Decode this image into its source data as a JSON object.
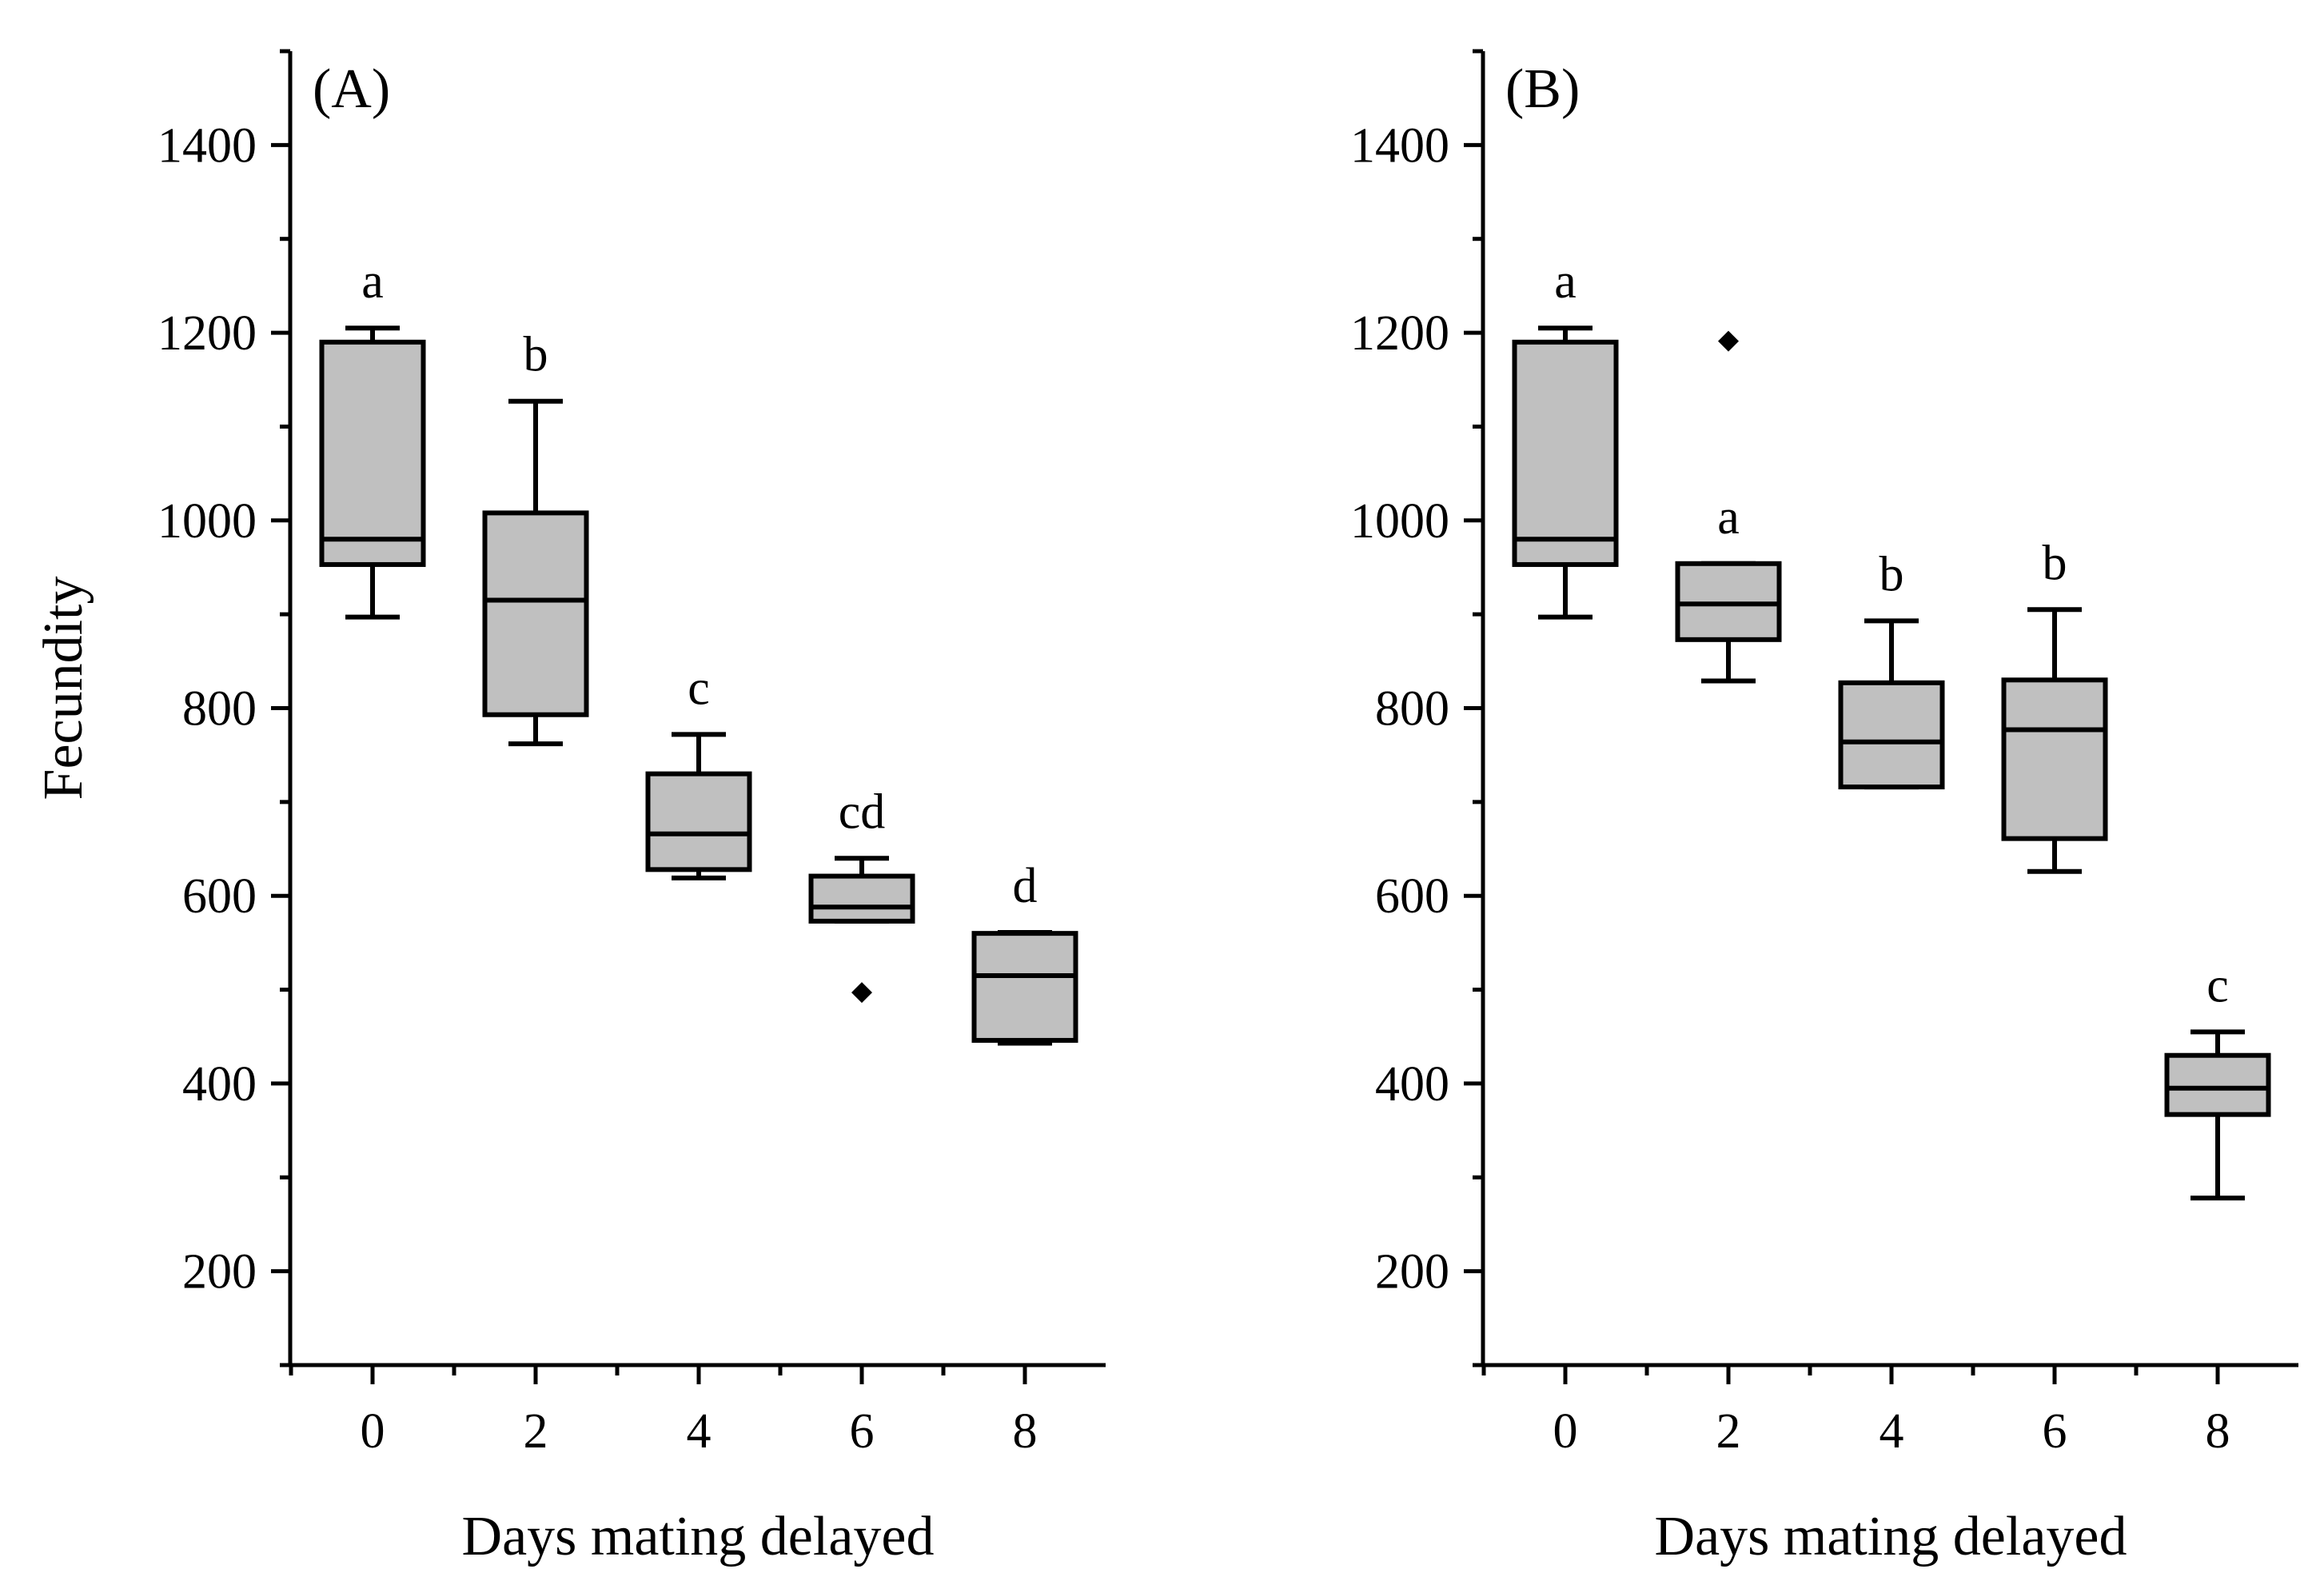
{
  "chart_data": [
    {
      "type": "box",
      "panel_label": "(A)",
      "xlabel": "Days mating delayed",
      "ylabel": "Fecundity",
      "ylim": [
        100,
        1500
      ],
      "yticks": [
        200,
        400,
        600,
        800,
        1000,
        1200,
        1400
      ],
      "categories": [
        "0",
        "2",
        "4",
        "6",
        "8"
      ],
      "boxes": [
        {
          "category": "0",
          "whisker_low": 897,
          "q1": 953,
          "median": 980,
          "q3": 1190,
          "whisker_high": 1205,
          "outliers": [],
          "letter": "a"
        },
        {
          "category": "2",
          "whisker_low": 762,
          "q1": 793,
          "median": 915,
          "q3": 1008,
          "whisker_high": 1127,
          "outliers": [],
          "letter": "b"
        },
        {
          "category": "4",
          "whisker_low": 619,
          "q1": 628,
          "median": 666,
          "q3": 730,
          "whisker_high": 772,
          "outliers": [],
          "letter": "c"
        },
        {
          "category": "6",
          "whisker_low": 573,
          "q1": 573,
          "median": 588,
          "q3": 621,
          "whisker_high": 640,
          "outliers": [
            497
          ],
          "letter": "cd"
        },
        {
          "category": "8",
          "whisker_low": 443,
          "q1": 446,
          "median": 515,
          "q3": 560,
          "whisker_high": 561,
          "outliers": [],
          "letter": "d"
        }
      ]
    },
    {
      "type": "box",
      "panel_label": "(B)",
      "xlabel": "Days mating delayed",
      "ylabel": "",
      "ylim": [
        100,
        1500
      ],
      "yticks": [
        200,
        400,
        600,
        800,
        1000,
        1200,
        1400
      ],
      "categories": [
        "0",
        "2",
        "4",
        "6",
        "8"
      ],
      "boxes": [
        {
          "category": "0",
          "whisker_low": 897,
          "q1": 953,
          "median": 980,
          "q3": 1190,
          "whisker_high": 1205,
          "outliers": [],
          "letter": "a"
        },
        {
          "category": "2",
          "whisker_low": 829,
          "q1": 873,
          "median": 911,
          "q3": 954,
          "whisker_high": 954,
          "outliers": [
            1191
          ],
          "letter": "a"
        },
        {
          "category": "4",
          "whisker_low": 716,
          "q1": 716,
          "median": 764,
          "q3": 827,
          "whisker_high": 893,
          "outliers": [],
          "letter": "b"
        },
        {
          "category": "6",
          "whisker_low": 626,
          "q1": 661,
          "median": 777,
          "q3": 830,
          "whisker_high": 905,
          "outliers": [],
          "letter": "b"
        },
        {
          "category": "8",
          "whisker_low": 278,
          "q1": 367,
          "median": 395,
          "q3": 430,
          "whisker_high": 455,
          "outliers": [],
          "letter": "c"
        }
      ]
    }
  ]
}
